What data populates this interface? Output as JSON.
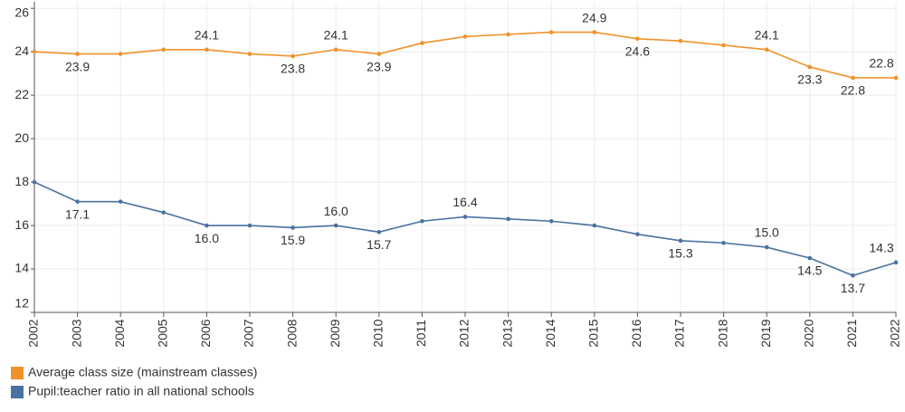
{
  "chart_data": {
    "type": "line",
    "categories": [
      "2002",
      "2003",
      "2004",
      "2005",
      "2006",
      "2007",
      "2008",
      "2009",
      "2010",
      "2011",
      "2012",
      "2013",
      "2014",
      "2015",
      "2016",
      "2017",
      "2018",
      "2019",
      "2020",
      "2021",
      "2022"
    ],
    "series": [
      {
        "name": "Average class size (mainstream classes)",
        "color": "#f0922b",
        "values": [
          24.0,
          23.9,
          23.9,
          24.1,
          24.1,
          23.9,
          23.8,
          24.1,
          23.9,
          24.4,
          24.7,
          24.8,
          24.9,
          24.9,
          24.6,
          24.5,
          24.3,
          24.1,
          23.3,
          22.8,
          22.8
        ],
        "value_labels": [
          null,
          "23.9",
          null,
          null,
          "24.1",
          null,
          "23.8",
          "24.1",
          "23.9",
          null,
          null,
          null,
          null,
          "24.9",
          "24.6",
          null,
          null,
          "24.1",
          "23.3",
          "22.8",
          "22.8"
        ]
      },
      {
        "name": "Pupil:teacher ratio in all national schools",
        "color": "#4a72a0",
        "values": [
          18.0,
          17.1,
          17.1,
          16.6,
          16.0,
          16.0,
          15.9,
          16.0,
          15.7,
          16.2,
          16.4,
          16.3,
          16.2,
          16.0,
          15.6,
          15.3,
          15.2,
          15.0,
          14.5,
          13.7,
          14.3
        ],
        "value_labels": [
          null,
          "17.1",
          null,
          null,
          "16.0",
          null,
          "15.9",
          "16.0",
          "15.7",
          null,
          "16.4",
          null,
          null,
          null,
          null,
          "15.3",
          null,
          "15.0",
          "14.5",
          "13.7",
          "14.3"
        ]
      }
    ],
    "ylim": [
      12,
      26.3
    ],
    "yticks": [
      12,
      14,
      16,
      18,
      20,
      22,
      24,
      26
    ],
    "grid": true
  }
}
